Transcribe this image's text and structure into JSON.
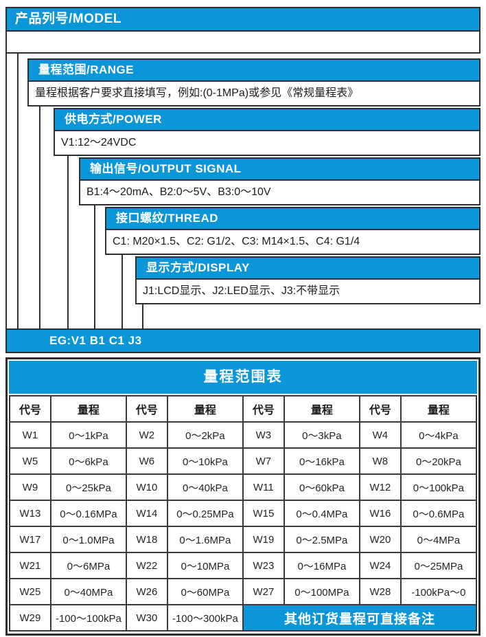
{
  "colors": {
    "accent_blue": "#0b96da",
    "border_dark": "#2f2f2f",
    "text_dark": "#1c1c1c"
  },
  "model_diagram": {
    "title": "产品列号/MODEL",
    "options": [
      {
        "header": "量程范围/RANGE",
        "content": "量程根据客户要求直接填写，例如:(0-1MPa)或参见《常规量程表》"
      },
      {
        "header": "供电方式/POWER",
        "content": "V1:12～24VDC"
      },
      {
        "header": "输出信号/OUTPUT SIGNAL",
        "content": "B1:4～20mA、B2:0～5V、B3:0～10V"
      },
      {
        "header": "接口螺纹/THREAD",
        "content": "C1: M20×1.5、C2: G1/2、C3: M14×1.5、C4: G1/4"
      },
      {
        "header": "显示方式/DISPLAY",
        "content": "J1:LCD显示、J2:LED显示、J3:不带显示"
      }
    ],
    "example_label": "EG:V1 B1 C1 J3"
  },
  "range_table": {
    "title": "量程范围表",
    "col_headers": [
      "代号",
      "量程",
      "代号",
      "量程",
      "代号",
      "量程",
      "代号",
      "量程"
    ],
    "rows": [
      [
        "W1",
        "0～1kPa",
        "W2",
        "0～2kPa",
        "W3",
        "0～3kPa",
        "W4",
        "0～4kPa"
      ],
      [
        "W5",
        "0～6kPa",
        "W6",
        "0～10kPa",
        "W7",
        "0～16kPa",
        "W8",
        "0～20kPa"
      ],
      [
        "W9",
        "0～25kPa",
        "W10",
        "0～40kPa",
        "W11",
        "0～60kPa",
        "W12",
        "0～100kPa"
      ],
      [
        "W13",
        "0～0.16MPa",
        "W14",
        "0～0.25MPa",
        "W15",
        "0～0.4MPa",
        "W16",
        "0～0.6MPa"
      ],
      [
        "W17",
        "0～1.0MPa",
        "W18",
        "0～1.6MPa",
        "W19",
        "0～2.5MPa",
        "W20",
        "0～4MPa"
      ],
      [
        "W21",
        "0～6MPa",
        "W22",
        "0～10MPa",
        "W23",
        "0～16MPa",
        "W24",
        "0～25MPa"
      ],
      [
        "W25",
        "0～40MPa",
        "W26",
        "0～60MPa",
        "W27",
        "0～100MPa",
        "W28",
        "-100kPa～0"
      ],
      [
        "W29",
        "-100～100kPa",
        "W30",
        "-100～300kPa"
      ]
    ],
    "note": "其他订货量程可直接备注"
  }
}
